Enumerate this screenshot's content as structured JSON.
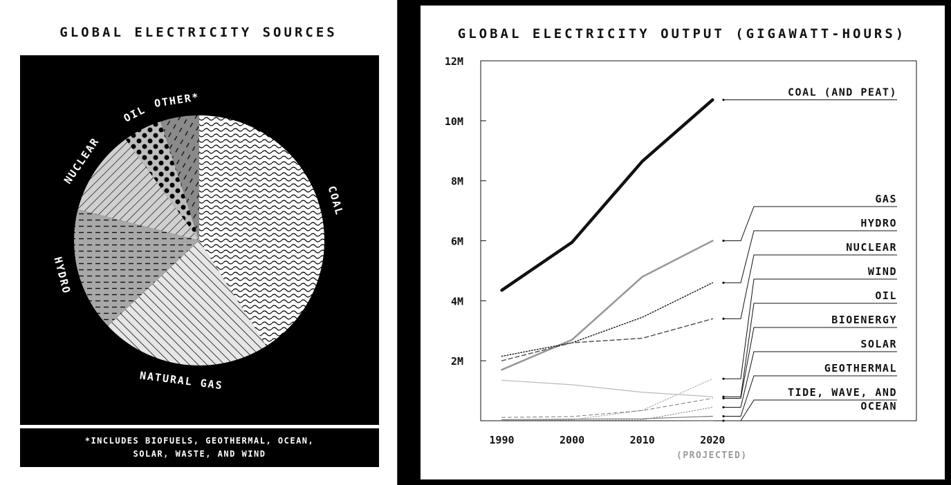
{
  "colors": {
    "background": "#000000",
    "panel": "#ffffff",
    "coal_line": "#111111",
    "gas_line": "#999999"
  },
  "chart_data": [
    {
      "type": "pie",
      "title": "GLOBAL ELECTRICITY SOURCES",
      "slices": [
        {
          "label": "COAL",
          "value": 41
        },
        {
          "label": "NATURAL GAS",
          "value": 22
        },
        {
          "label": "HYDRO",
          "value": 16
        },
        {
          "label": "NUCLEAR",
          "value": 11
        },
        {
          "label": "OIL",
          "value": 5
        },
        {
          "label": "OTHER*",
          "value": 5
        }
      ],
      "footnote": [
        "*INCLUDES BIOFUELS, GEOTHERMAL, OCEAN,",
        "SOLAR, WASTE, AND WIND"
      ]
    },
    {
      "type": "line",
      "title": "GLOBAL ELECTRICITY OUTPUT (GIGAWATT-HOURS)",
      "x": [
        1990,
        2000,
        2010,
        2020
      ],
      "x_tick_labels": [
        "1990",
        "2000",
        "2010",
        "2020"
      ],
      "x_note": "(PROJECTED)",
      "ylim": [
        0,
        12000000
      ],
      "y_ticks": [
        2000000,
        4000000,
        6000000,
        8000000,
        10000000,
        12000000
      ],
      "y_tick_labels": [
        "2M",
        "4M",
        "6M",
        "8M",
        "10M",
        "12M"
      ],
      "series": [
        {
          "name": "COAL (AND PEAT)",
          "values": [
            4350000,
            5950000,
            8650000,
            10700000
          ],
          "style": "solid-thick",
          "color": "#111111"
        },
        {
          "name": "GAS",
          "values": [
            1700000,
            2700000,
            4800000,
            6000000
          ],
          "style": "solid",
          "color": "#999999"
        },
        {
          "name": "HYDRO",
          "values": [
            2150000,
            2600000,
            3450000,
            4600000
          ],
          "style": "dotted",
          "color": "#111111"
        },
        {
          "name": "NUCLEAR",
          "values": [
            2000000,
            2600000,
            2750000,
            3400000
          ],
          "style": "dashed",
          "color": "#555555"
        },
        {
          "name": "WIND",
          "values": [
            4000,
            30000,
            350000,
            1400000
          ],
          "style": "dotted-light",
          "color": "#aaaaaa"
        },
        {
          "name": "OIL",
          "values": [
            1350000,
            1200000,
            950000,
            800000
          ],
          "style": "solid-thin",
          "color": "#bbbbbb"
        },
        {
          "name": "BIOENERGY",
          "values": [
            110000,
            140000,
            340000,
            750000
          ],
          "style": "dashed-thin",
          "color": "#777777"
        },
        {
          "name": "SOLAR",
          "values": [
            1000,
            2000,
            30000,
            450000
          ],
          "style": "dotted-thin",
          "color": "#777777"
        },
        {
          "name": "GEOTHERMAL",
          "values": [
            36000,
            52000,
            68000,
            150000
          ],
          "style": "solid-thin",
          "color": "#777777"
        },
        {
          "name": "TIDE, WAVE, AND OCEAN",
          "values": [
            600,
            600,
            600,
            1000
          ],
          "style": "solid-thin",
          "color": "#444444"
        }
      ],
      "label_lines": [
        "COAL (AND PEAT)",
        "GAS",
        "HYDRO",
        "NUCLEAR",
        "WIND",
        "OIL",
        "BIOENERGY",
        "SOLAR",
        "GEOTHERMAL",
        [
          "TIDE, WAVE, AND",
          "OCEAN"
        ]
      ]
    }
  ]
}
